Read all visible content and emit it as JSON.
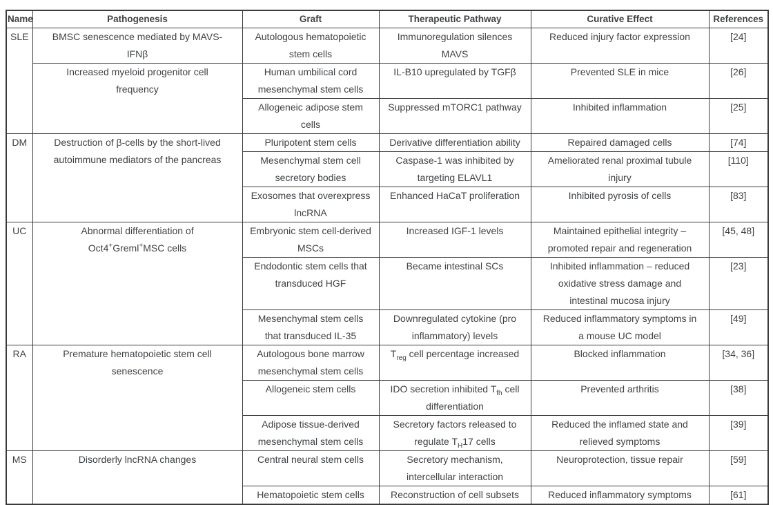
{
  "colors": {
    "border": "#3b3b3b",
    "text": "#3f4245",
    "background": "#ffffff"
  },
  "table": {
    "headers": [
      "Name",
      "Pathogenesis",
      "Graft",
      "Therapeutic Pathway",
      "Curative Effect",
      "References"
    ],
    "rows": [
      {
        "name": "SLE",
        "pathogenesis": "BMSC senescence mediated by MAVS-\nIFNβ",
        "graft": "Autologous hematopoietic\nstem cells",
        "pathway": "Immunoregulation silences\nMAVS",
        "effect": "Reduced injury factor expression",
        "ref": "[24]"
      },
      {
        "pathogenesis": "Increased myeloid progenitor cell\nfrequency",
        "graft": "Human umbilical cord\nmesenchymal stem cells",
        "pathway": "IL-B10 upregulated by TGFβ",
        "effect": "Prevented SLE in mice",
        "ref": "[26]"
      },
      {
        "graft": "Allogeneic adipose stem\ncells",
        "pathway": "Suppressed mTORC1 pathway",
        "effect": "Inhibited inflammation",
        "ref": "[25]"
      },
      {
        "name": "DM",
        "pathogenesis": "Destruction of β-cells by the short-lived\nautoimmune mediators of the pancreas",
        "graft": "Pluripotent stem cells",
        "pathway": "Derivative differentiation ability",
        "effect": "Repaired damaged cells",
        "ref": "[74]"
      },
      {
        "graft": "Mesenchymal stem cell\nsecretory bodies",
        "pathway": "Caspase-1 was inhibited by\ntargeting ELAVL1",
        "effect": "Ameliorated renal proximal tubule\ninjury",
        "ref": "[110]"
      },
      {
        "graft": "Exosomes that overexpress\nlncRNA",
        "pathway": "Enhanced HaCaT proliferation",
        "effect": "Inhibited pyrosis of cells",
        "ref": "[83]"
      },
      {
        "name": "UC",
        "pathogenesis": "Abnormal differentiation of\nOct4^+^Greml^+^MSC cells",
        "graft": "Embryonic stem cell-derived\nMSCs",
        "pathway": "Increased IGF-1 levels",
        "effect": "Maintained epithelial integrity –\npromoted repair and regeneration",
        "ref": "[45, 48]"
      },
      {
        "graft": "Endodontic stem cells that\ntransduced HGF",
        "pathway": "Became intestinal SCs",
        "effect": "Inhibited inflammation – reduced\noxidative stress damage and\nintestinal mucosa injury",
        "ref": "[23]"
      },
      {
        "graft": "Mesenchymal stem cells\nthat transduced IL-35",
        "pathway": "Downregulated cytokine (pro\ninflammatory) levels",
        "effect": "Reduced inflammatory symptoms in\na mouse UC model",
        "ref": "[49]"
      },
      {
        "name": "RA",
        "pathogenesis": "Premature hematopoietic stem cell\nsenescence",
        "graft": "Autologous bone marrow\nmesenchymal stem cells",
        "pathway": "T~reg~ cell percentage increased",
        "effect": "Blocked inflammation",
        "ref": "[34, 36]"
      },
      {
        "graft": "Allogeneic stem cells",
        "pathway": "IDO secretion inhibited T~fh~ cell\ndifferentiation",
        "effect": "Prevented arthritis",
        "ref": "[38]"
      },
      {
        "graft": "Adipose tissue-derived\nmesenchymal stem cells",
        "pathway": "Secretory factors released to\nregulate T~H~17 cells",
        "effect": "Reduced the inflamed state and\nrelieved symptoms",
        "ref": "[39]"
      },
      {
        "name": "MS",
        "pathogenesis": "Disorderly lncRNA changes",
        "graft": "Central neural stem cells",
        "pathway": "Secretory mechanism,\nintercellular interaction",
        "effect": "Neuroprotection, tissue repair",
        "ref": "[59]"
      },
      {
        "graft": "Hematopoietic stem cells",
        "pathway": "Reconstruction of cell subsets",
        "effect": "Reduced inflammatory symptoms",
        "ref": "[61]"
      }
    ]
  }
}
